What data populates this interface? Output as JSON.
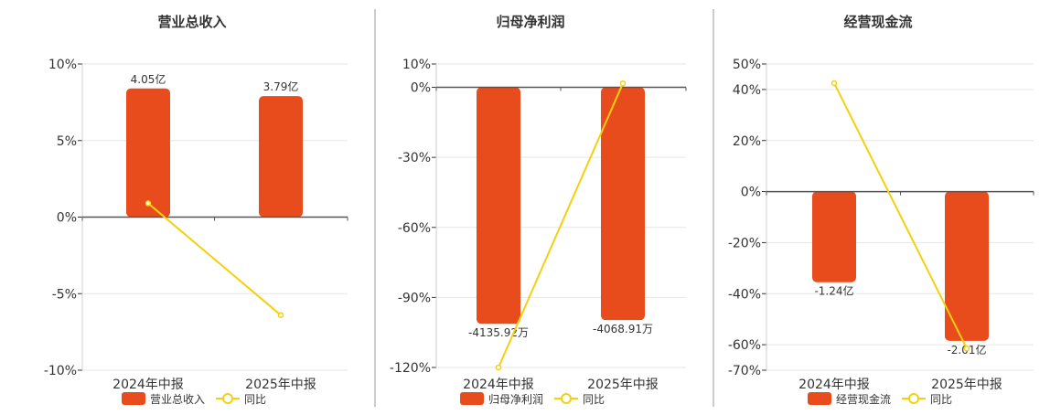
{
  "colors": {
    "bar": "#e84c1c",
    "line": "#f5d00f",
    "grid": "#e6e6e6",
    "axis": "#333333",
    "divider": "#999999"
  },
  "chart_data": [
    {
      "type": "bar",
      "title": "营业总收入",
      "categories": [
        "2024年中报",
        "2025年中报"
      ],
      "bar_series": {
        "name": "营业总收入",
        "values": [
          8.4,
          7.9
        ],
        "labels": [
          "4.05亿",
          "3.79亿"
        ]
      },
      "line_series": {
        "name": "同比",
        "values": [
          0.9,
          -6.4
        ]
      },
      "ylim": [
        -10,
        10
      ],
      "yticks": [
        10,
        5,
        0,
        -5,
        -10
      ],
      "ytick_labels": [
        "10%",
        "5%",
        "0%",
        "-5%",
        "-10%"
      ],
      "label_pos": "top",
      "grid": true,
      "legend": "bottom"
    },
    {
      "type": "bar",
      "title": "归母净利润",
      "categories": [
        "2024年中报",
        "2025年中报"
      ],
      "bar_series": {
        "name": "归母净利润",
        "values": [
          -101.3,
          -99.7
        ],
        "labels": [
          "-4135.92万",
          "-4068.91万"
        ]
      },
      "line_series": {
        "name": "同比",
        "values": [
          -120.0,
          1.7
        ]
      },
      "ylim": [
        -120,
        10
      ],
      "yticks": [
        10,
        0,
        -30,
        -60,
        -90,
        -120
      ],
      "ytick_labels": [
        "10%",
        "0%",
        "-30%",
        "-60%",
        "-90%",
        "-120%"
      ],
      "label_pos": "bottom",
      "grid": true,
      "legend": "bottom"
    },
    {
      "type": "bar",
      "title": "经营现金流",
      "categories": [
        "2024年中报",
        "2025年中报"
      ],
      "bar_series": {
        "name": "经营现金流",
        "values": [
          -35.5,
          -58.5
        ],
        "labels": [
          "-1.24亿",
          "-2.01亿"
        ]
      },
      "line_series": {
        "name": "同比",
        "values": [
          42.5,
          -61.5
        ]
      },
      "ylim": [
        -70,
        50
      ],
      "yticks": [
        50,
        40,
        20,
        0,
        -20,
        -40,
        -60,
        -70
      ],
      "ytick_labels": [
        "50%",
        "40%",
        "20%",
        "0%",
        "-20%",
        "-40%",
        "-60%",
        "-70%"
      ],
      "label_pos": "bottom",
      "grid": true,
      "legend": "bottom"
    }
  ]
}
